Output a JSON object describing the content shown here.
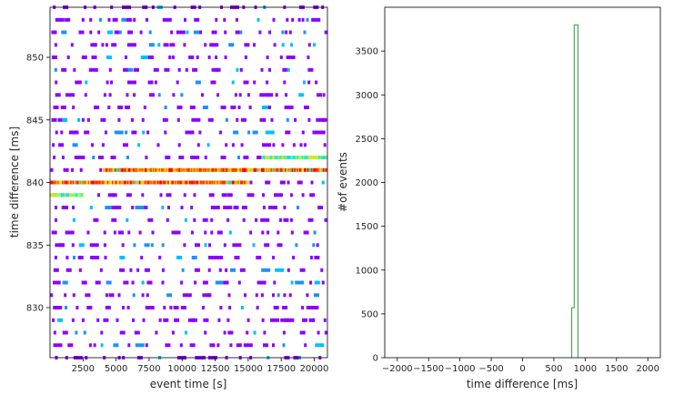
{
  "chart_data": [
    {
      "type": "heatmap",
      "xlabel": "event time [s]",
      "ylabel": "time difference [ms]",
      "xlim": [
        0,
        21000
      ],
      "ylim": [
        826,
        854
      ],
      "xticks": [
        2500,
        5000,
        7500,
        10000,
        12500,
        15000,
        17500,
        20000
      ],
      "yticks": [
        830,
        835,
        840,
        845,
        850
      ],
      "colormap": "rainbow",
      "grid": false,
      "bands": [
        {
          "y": 841.0,
          "x_start": 4000,
          "x_end": 21000,
          "intensity": "high"
        },
        {
          "y": 840.0,
          "x_start": 0,
          "x_end": 15000,
          "intensity": "high"
        },
        {
          "y": 842.0,
          "x_start": 16000,
          "x_end": 21000,
          "intensity": "medium"
        },
        {
          "y": 839.0,
          "x_start": 0,
          "x_end": 2500,
          "intensity": "medium"
        }
      ],
      "background": "sparse low-count points in every 1 ms row across the full event time range"
    },
    {
      "type": "histogram",
      "xlabel": "time difference [ms]",
      "ylabel": "#of events",
      "xlim": [
        -2200,
        2200
      ],
      "ylim": [
        0,
        4000
      ],
      "xticks": [
        -2000,
        -1500,
        -1000,
        -500,
        0,
        500,
        1000,
        1500,
        2000
      ],
      "yticks": [
        0,
        500,
        1000,
        1500,
        2000,
        2500,
        3000,
        3500
      ],
      "color": "#2ca02c",
      "histtype": "step",
      "grid": false,
      "bins": [
        {
          "x_start": 785,
          "x_end": 825,
          "count": 570
        },
        {
          "x_start": 825,
          "x_end": 865,
          "count": 3800
        },
        {
          "x_start": 865,
          "x_end": 885,
          "count": 3800
        }
      ]
    }
  ]
}
